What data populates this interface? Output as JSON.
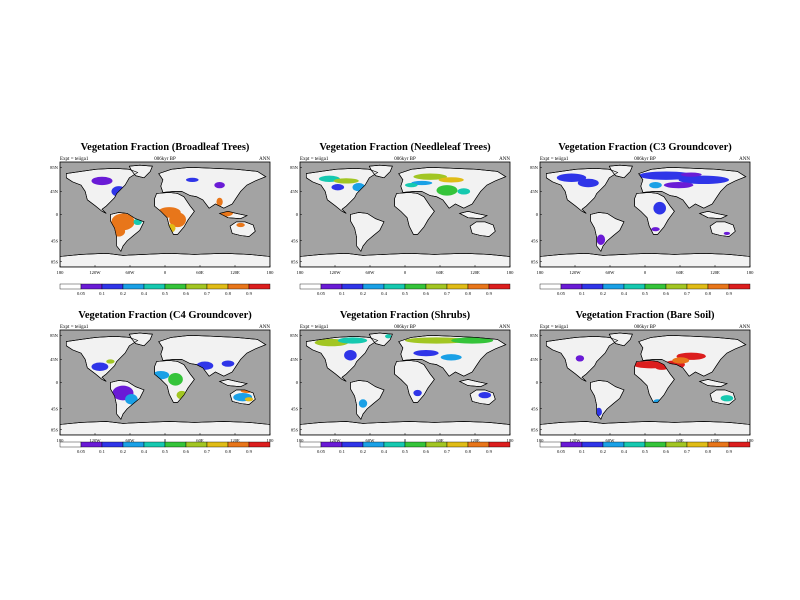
{
  "figure": {
    "panels": [
      {
        "title": "Vegetation Fraction (Broadleaf Trees)",
        "expt_label": "Expt = teiiga1",
        "time_label": "006kyr BP",
        "season_label": "ANN",
        "variable": "broadleaf-trees"
      },
      {
        "title": "Vegetation Fraction (Needleleaf Trees)",
        "expt_label": "Expt = teiiga1",
        "time_label": "006kyr BP",
        "season_label": "ANN",
        "variable": "needleleaf-trees"
      },
      {
        "title": "Vegetation Fraction (C3 Groundcover)",
        "expt_label": "Expt = teiiga1",
        "time_label": "006kyr BP",
        "season_label": "ANN",
        "variable": "c3-groundcover"
      },
      {
        "title": "Vegetation Fraction (C4 Groundcover)",
        "expt_label": "Expt = teiiga1",
        "time_label": "",
        "season_label": "ANN",
        "variable": "c4-groundcover"
      },
      {
        "title": "Vegetation Fraction (Shrubs)",
        "expt_label": "Expt = teiiga1",
        "time_label": "006kyr BP",
        "season_label": "ANN",
        "variable": "shrubs"
      },
      {
        "title": "Vegetation Fraction (Bare Soil)",
        "expt_label": "Expt = teiiga1",
        "time_label": "006kyr BP",
        "season_label": "ANN",
        "variable": "bare-soil"
      }
    ],
    "lat_labels": [
      "85N",
      "45N",
      "0",
      "45S",
      "85S"
    ],
    "lon_labels": [
      "180",
      "120W",
      "60W",
      "0",
      "60E",
      "120E",
      "180"
    ],
    "colorbar": {
      "labels": [
        "0.05",
        "0.1",
        "0.2",
        "0.4",
        "0.5",
        "0.6",
        "0.7",
        "0.8",
        "0.9"
      ],
      "colors": [
        "#ffffff",
        "#6a1bd6",
        "#2f35e8",
        "#1aa0e6",
        "#16c9b0",
        "#35c43a",
        "#a2c623",
        "#e0bc16",
        "#e8761a",
        "#dc1e1e"
      ]
    },
    "colors": {
      "ocean": "#a3a3a3",
      "land": "#f2f2f2",
      "antarctica": "#f2f2f2"
    }
  }
}
